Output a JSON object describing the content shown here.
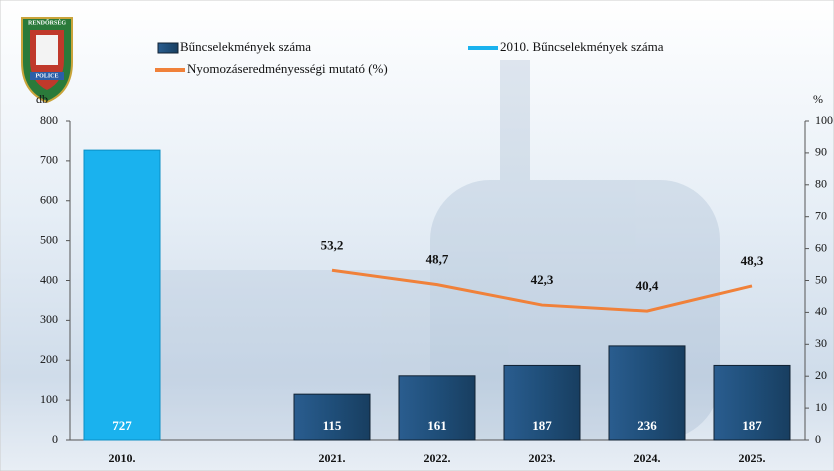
{
  "chart_data": {
    "type": "bar",
    "logo": {
      "top": "RENDŐRSÉG",
      "bottom": "POLICE"
    },
    "y_label": "db",
    "y2_label": "%",
    "categories": [
      "2010.",
      null,
      "2021.",
      "2022.",
      "2023.",
      "2024.",
      "2025."
    ],
    "series": [
      {
        "name": "Bűncselekmények száma",
        "type": "bar",
        "color": "#1f4e79",
        "values": [
          null,
          null,
          115,
          161,
          187,
          236,
          187
        ]
      },
      {
        "name": "2010. Bűncselekmények száma",
        "type": "bar",
        "color": "#1ab2ee",
        "values": [
          727,
          null,
          null,
          null,
          null,
          null,
          null
        ]
      },
      {
        "name": "Nyomozáseredményességi mutató (%)",
        "type": "line",
        "axis": "y2",
        "color": "#f0813a",
        "values": [
          null,
          null,
          53.2,
          48.7,
          42.3,
          40.4,
          48.3
        ],
        "value_labels": [
          null,
          null,
          "53,2",
          "48,7",
          "42,3",
          "40,4",
          "48,3"
        ]
      }
    ],
    "ylim": [
      0,
      800
    ],
    "yticks": [
      0,
      100,
      200,
      300,
      400,
      500,
      600,
      700,
      800
    ],
    "y2lim": [
      0,
      100
    ],
    "y2ticks": [
      0,
      10,
      20,
      30,
      40,
      50,
      60,
      70,
      80,
      90,
      100
    ]
  }
}
